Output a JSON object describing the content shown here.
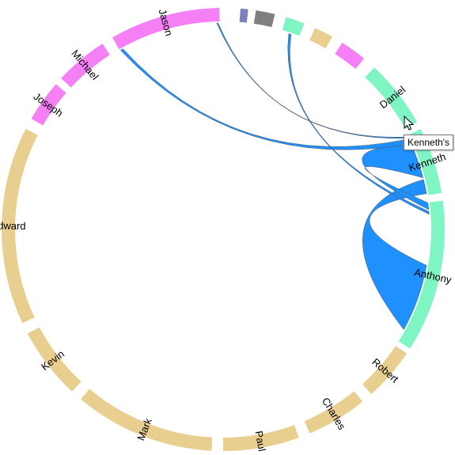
{
  "chart_data": {
    "type": "chord",
    "colors": {
      "pink": "#f57ff5",
      "sand": "#e8cf8f",
      "mint": "#7ff5c4",
      "slate": "#7f7fbf",
      "gray": "#7f7f7f",
      "ribbon": "#1e90ff",
      "ribbon_stroke": "#555555"
    },
    "groups": [
      {
        "name": "Jason",
        "color": "pink"
      },
      {
        "name": "",
        "color": "slate"
      },
      {
        "name": "",
        "color": "gray"
      },
      {
        "name": "",
        "color": "mint"
      },
      {
        "name": "",
        "color": "sand"
      },
      {
        "name": "",
        "color": "pink"
      },
      {
        "name": "Daniel",
        "color": "mint"
      },
      {
        "name": "Kenneth",
        "color": "mint"
      },
      {
        "name": "Anthony",
        "color": "mint"
      },
      {
        "name": "Robert",
        "color": "sand"
      },
      {
        "name": "Charles",
        "color": "sand"
      },
      {
        "name": "Paul",
        "color": "sand"
      },
      {
        "name": "Mark",
        "color": "sand"
      },
      {
        "name": "Kevin",
        "color": "sand"
      },
      {
        "name": "Edward",
        "color": "sand"
      },
      {
        "name": "Joseph",
        "color": "pink"
      },
      {
        "name": "Michael",
        "color": "pink"
      }
    ],
    "highlighted_group": "Kenneth"
  },
  "tooltip": {
    "text": "Kenneth's"
  }
}
